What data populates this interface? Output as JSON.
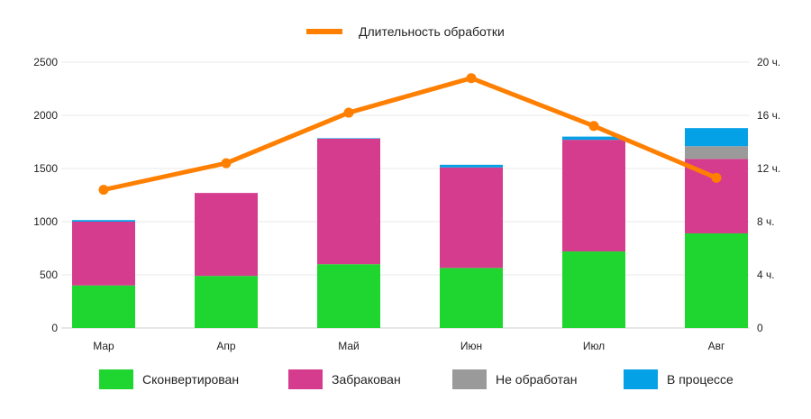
{
  "chart_data": {
    "type": "bar",
    "stacked": true,
    "categories": [
      "Мар",
      "Апр",
      "Май",
      "Июн",
      "Июл",
      "Авг"
    ],
    "series": [
      {
        "name": "Сконвертирован",
        "color": "#1ed62f",
        "values": [
          400,
          490,
          600,
          565,
          720,
          890
        ]
      },
      {
        "name": "Забракован",
        "color": "#d63c8d",
        "values": [
          600,
          780,
          1180,
          945,
          1050,
          700
        ]
      },
      {
        "name": "Не обработан",
        "color": "#9a9a9a",
        "values": [
          0,
          0,
          0,
          0,
          0,
          120
        ]
      },
      {
        "name": "В процессе",
        "color": "#05a1e6",
        "values": [
          15,
          0,
          5,
          25,
          30,
          170
        ]
      }
    ],
    "line_series": {
      "name": "Длительность обработки",
      "color": "#ff7f00",
      "axis": "right",
      "values": [
        10.4,
        12.4,
        16.2,
        18.8,
        15.2,
        11.3
      ]
    },
    "ylim": [
      0,
      2500
    ],
    "yticks": [
      "0",
      "500",
      "1000",
      "1500",
      "2000",
      "2500"
    ],
    "y2lim": [
      0,
      20
    ],
    "y2ticks": [
      "0",
      "4 ч.",
      "8 ч.",
      "12 ч.",
      "16 ч.",
      "20 ч."
    ],
    "grid": true,
    "legend_line_placement": "top",
    "legend_bars_placement": "bottom"
  }
}
